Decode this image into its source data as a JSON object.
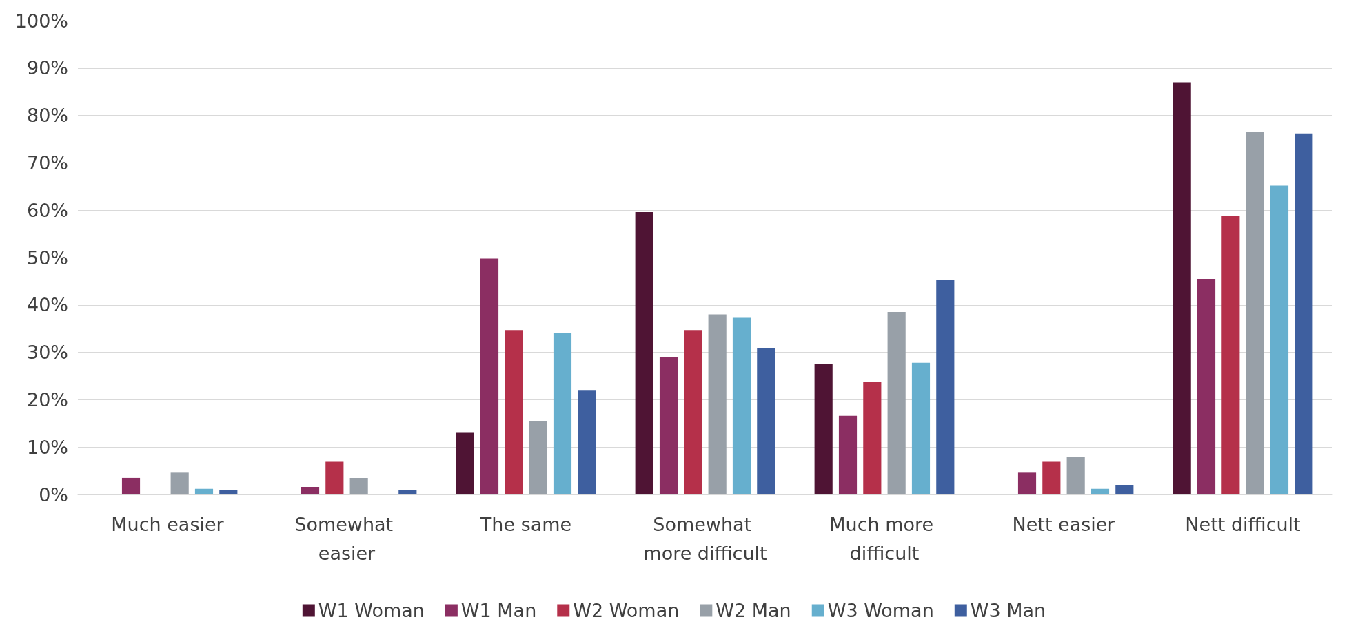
{
  "chart_data": {
    "type": "bar",
    "categories": [
      "Much easier",
      "Somewhat easier",
      "The same",
      "Somewhat more difficult",
      "Much more difficult",
      "Nett easier",
      "Nett difficult"
    ],
    "series": [
      {
        "name": "W1 Woman",
        "color": "#4f1434",
        "values": [
          0,
          0,
          13,
          59.6,
          27.5,
          0,
          87
        ]
      },
      {
        "name": "W1 Man",
        "color": "#8b2e62",
        "values": [
          3.5,
          1.6,
          49.8,
          29,
          16.6,
          4.6,
          45.5
        ]
      },
      {
        "name": "W2 Woman",
        "color": "#b5304a",
        "values": [
          0,
          6.9,
          34.7,
          34.7,
          23.8,
          6.9,
          58.8
        ]
      },
      {
        "name": "W2 Man",
        "color": "#98a0a8",
        "values": [
          4.6,
          3.5,
          15.5,
          38,
          38.5,
          8,
          76.5
        ]
      },
      {
        "name": "W3 Woman",
        "color": "#66afce",
        "values": [
          1.2,
          0,
          34,
          37.3,
          27.8,
          1.2,
          65.2
        ]
      },
      {
        "name": "W3 Man",
        "color": "#3e5f9f",
        "values": [
          0.9,
          0.9,
          21.9,
          30.9,
          45.2,
          2,
          76.2
        ]
      }
    ],
    "ylim": [
      0,
      100
    ],
    "yticks": [
      {
        "value": 0,
        "label": "0%"
      },
      {
        "value": 10,
        "label": "10%"
      },
      {
        "value": 20,
        "label": "20%"
      },
      {
        "value": 30,
        "label": "30%"
      },
      {
        "value": 40,
        "label": "40%"
      },
      {
        "value": 50,
        "label": "50%"
      },
      {
        "value": 60,
        "label": "60%"
      },
      {
        "value": 70,
        "label": "70%"
      },
      {
        "value": 80,
        "label": "80%"
      },
      {
        "value": 90,
        "label": "90%"
      },
      {
        "value": 100,
        "label": "100%"
      }
    ],
    "grid": "y",
    "legend": "bottom"
  }
}
